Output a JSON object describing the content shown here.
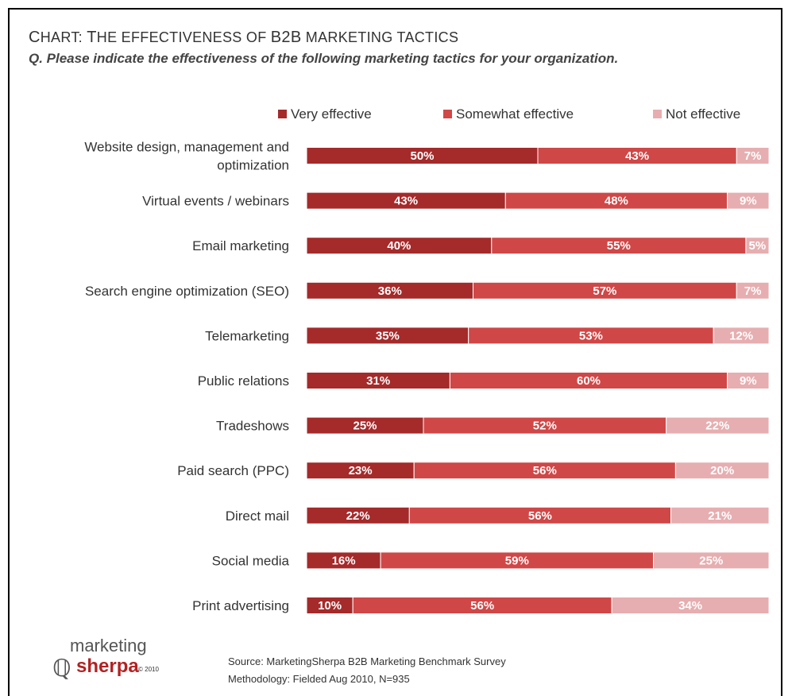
{
  "title": {
    "prefix_cap": "C",
    "prefix_rest": "HART: ",
    "main_cap": "T",
    "main_rest": "HE EFFECTIVENESS OF ",
    "b2b": "B2B",
    "tail": " MARKETING TACTICS"
  },
  "question": "Q. Please indicate the effectiveness of the following marketing tactics for your organization.",
  "colors": {
    "very": "#a52a2a",
    "somewhat": "#d04747",
    "not": "#e6aeb0"
  },
  "chart_data": {
    "type": "bar",
    "orientation": "horizontal",
    "stacked": true,
    "normalized": true,
    "legend_position": "top-right",
    "categories": [
      "Website design, management and optimization",
      "Virtual events / webinars",
      "Email marketing",
      "Search engine optimization (SEO)",
      "Telemarketing",
      "Public relations",
      "Tradeshows",
      "Paid search (PPC)",
      "Direct mail",
      "Social media",
      "Print advertising"
    ],
    "category_lines": [
      [
        "Website design, management and",
        "optimization"
      ],
      [
        "Virtual events / webinars"
      ],
      [
        "Email marketing"
      ],
      [
        "Search engine optimization (SEO)"
      ],
      [
        "Telemarketing"
      ],
      [
        "Public relations"
      ],
      [
        "Tradeshows"
      ],
      [
        "Paid search (PPC)"
      ],
      [
        "Direct mail"
      ],
      [
        "Social media"
      ],
      [
        "Print advertising"
      ]
    ],
    "series": [
      {
        "name": "Very effective",
        "values": [
          50,
          43,
          40,
          36,
          35,
          31,
          25,
          23,
          22,
          16,
          10
        ]
      },
      {
        "name": "Somewhat effective",
        "values": [
          43,
          48,
          55,
          57,
          53,
          60,
          52,
          56,
          56,
          59,
          56
        ]
      },
      {
        "name": "Not effective",
        "values": [
          7,
          9,
          5,
          7,
          12,
          9,
          22,
          20,
          21,
          25,
          34
        ]
      }
    ],
    "value_suffix": "%"
  },
  "logo": {
    "top": "marketing",
    "bottom": "sherpa",
    "copy": "© 2010"
  },
  "source": {
    "line1": "Source: MarketingSherpa B2B Marketing Benchmark Survey",
    "line2": "Methodology: Fielded Aug 2010, N=935"
  }
}
